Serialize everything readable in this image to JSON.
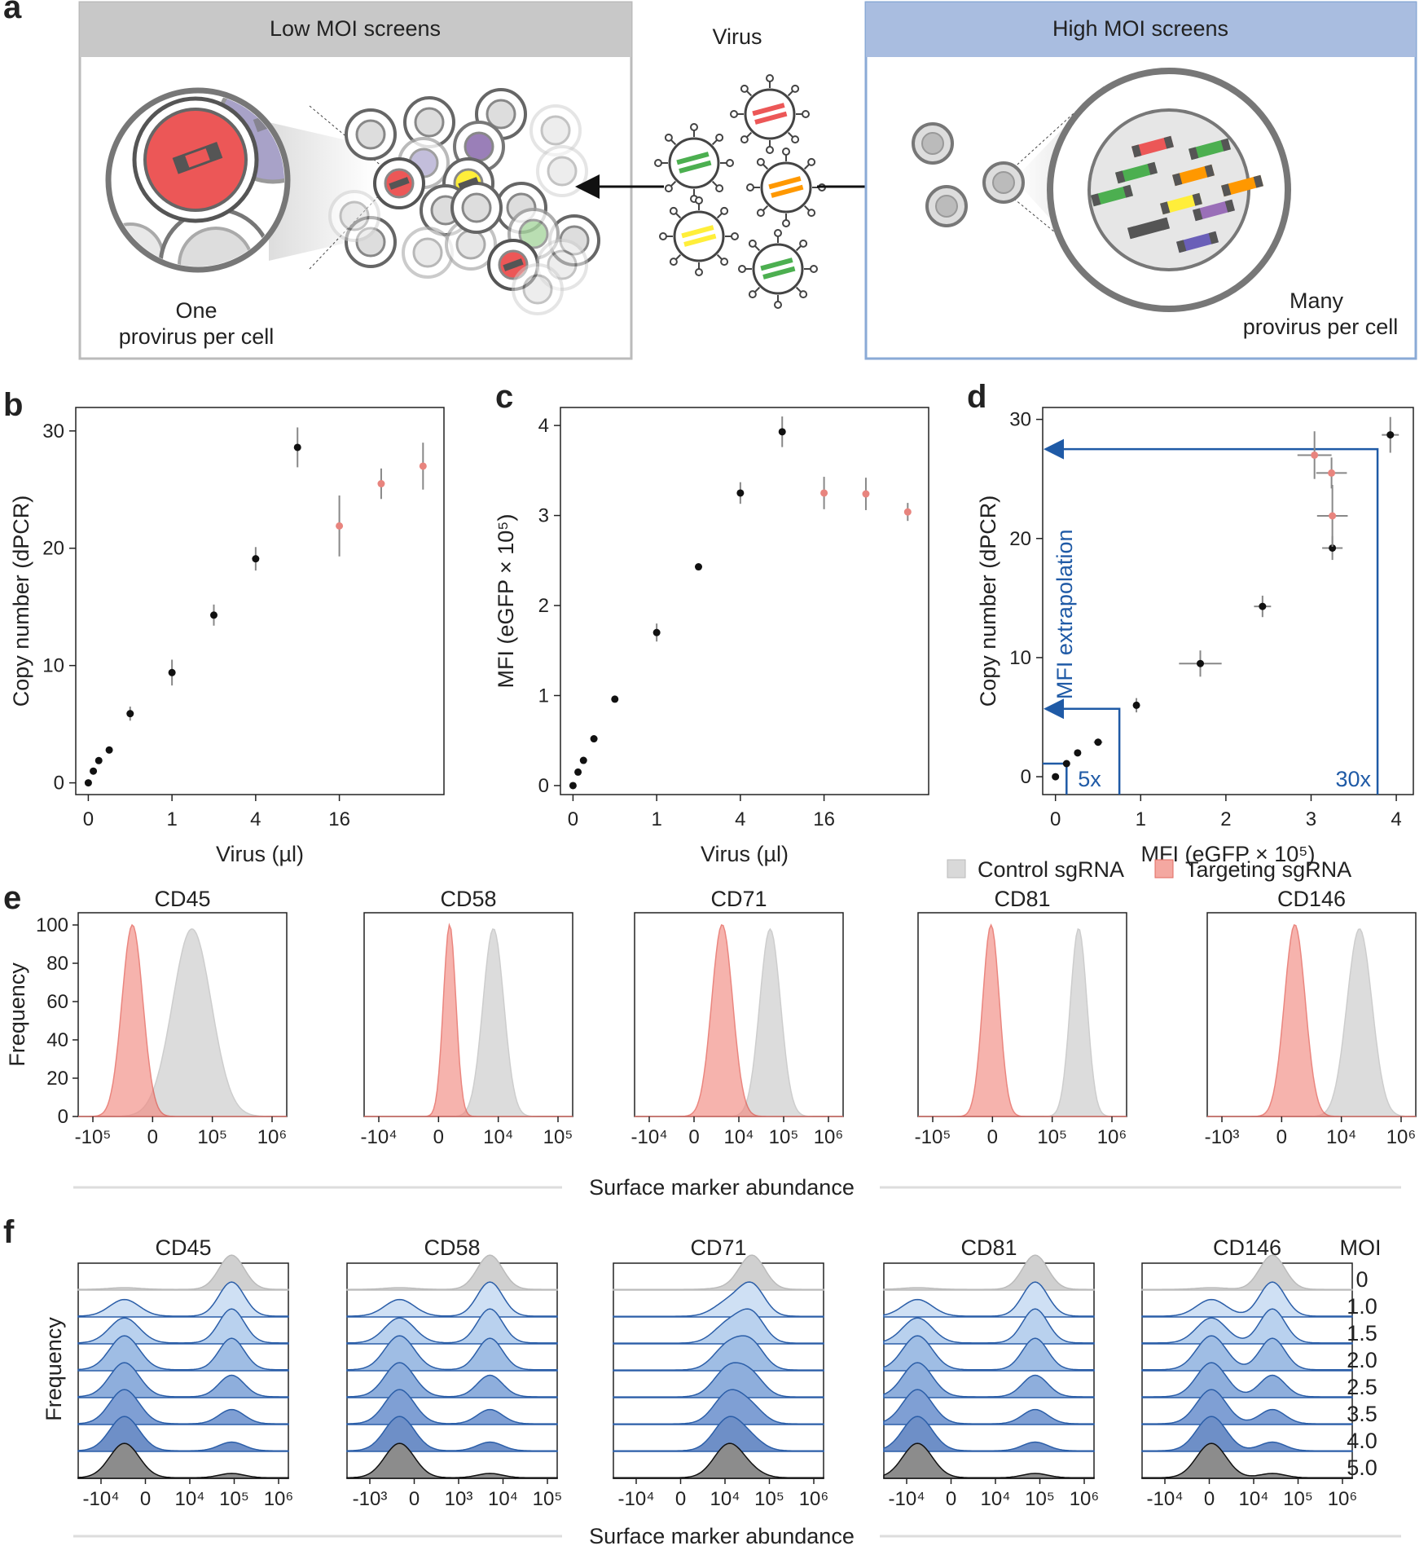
{
  "figure": {
    "panel_labels": [
      "a",
      "b",
      "c",
      "d",
      "e",
      "f"
    ],
    "colors": {
      "low_header": "#c8c8c8",
      "high_header": "#a9bde0",
      "high_border": "#8aaad6",
      "black_point": "#111111",
      "pink_point": "#e8847e",
      "extrapolation": "#1f5aa6",
      "control_fill": "#d9d9d9",
      "targeting_fill": "#f28b82",
      "moi_palette": [
        "#d0d0d0",
        "#cfe0f4",
        "#b9d1ee",
        "#9fbde4",
        "#8eaedc",
        "#7f9fd4",
        "#6e8fc7",
        "#8c8c8c"
      ]
    }
  },
  "panel_a": {
    "low_title": "Low MOI screens",
    "high_title": "High MOI screens",
    "virus_label": "Virus",
    "low_caption_line1": "One",
    "low_caption_line2": "provirus per cell",
    "high_caption_line1": "Many",
    "high_caption_line2": "provirus per cell",
    "icons": [
      "cell-icon",
      "virus-icon",
      "provirus-icon",
      "arrow-icon"
    ]
  },
  "chart_data": [
    {
      "id": "b",
      "type": "scatter",
      "xlabel": "Virus (µl)",
      "ylabel": "Copy number (dPCR)",
      "x_tick_labels": [
        "0",
        "1",
        "4",
        "16"
      ],
      "y_ticks": [
        0,
        10,
        20,
        30
      ],
      "ylim": [
        -1,
        32
      ],
      "series": [
        {
          "color": "black",
          "points": [
            {
              "x": 0,
              "y": 0,
              "err": 0.2
            },
            {
              "x": 0.12,
              "y": 1.0,
              "err": 0.2
            },
            {
              "x": 0.25,
              "y": 1.9,
              "err": 0.2
            },
            {
              "x": 0.5,
              "y": 2.8,
              "err": 0.3
            },
            {
              "x": 1,
              "y": 5.9,
              "err": 0.6
            },
            {
              "x": 2,
              "y": 9.4,
              "err": 1.1
            },
            {
              "x": 3,
              "y": 14.3,
              "err": 0.9
            },
            {
              "x": 4,
              "y": 19.1,
              "err": 1.0
            },
            {
              "x": 5,
              "y": 28.6,
              "err": 1.7
            }
          ]
        },
        {
          "color": "pink",
          "points": [
            {
              "x": 6,
              "y": 21.9,
              "err": 2.6
            },
            {
              "x": 7,
              "y": 25.5,
              "err": 1.3
            },
            {
              "x": 8,
              "y": 27.0,
              "err": 2.0
            }
          ]
        }
      ]
    },
    {
      "id": "c",
      "type": "scatter",
      "xlabel": "Virus (µl)",
      "ylabel": "MFI (eGFP × 10⁵)",
      "x_tick_labels": [
        "0",
        "1",
        "4",
        "16"
      ],
      "y_ticks": [
        0,
        1,
        2,
        3,
        4
      ],
      "ylim": [
        -0.1,
        4.2
      ],
      "series": [
        {
          "color": "black",
          "points": [
            {
              "x": 0,
              "y": 0.0,
              "err": 0.02
            },
            {
              "x": 0.12,
              "y": 0.15,
              "err": 0.02
            },
            {
              "x": 0.25,
              "y": 0.28,
              "err": 0.02
            },
            {
              "x": 0.5,
              "y": 0.52,
              "err": 0.03
            },
            {
              "x": 1,
              "y": 0.96,
              "err": 0.03
            },
            {
              "x": 2,
              "y": 1.7,
              "err": 0.1
            },
            {
              "x": 3,
              "y": 2.43,
              "err": 0.03
            },
            {
              "x": 4,
              "y": 3.25,
              "err": 0.12
            },
            {
              "x": 5,
              "y": 3.93,
              "err": 0.17
            }
          ]
        },
        {
          "color": "pink",
          "points": [
            {
              "x": 6,
              "y": 3.25,
              "err": 0.18
            },
            {
              "x": 7,
              "y": 3.24,
              "err": 0.18
            },
            {
              "x": 8,
              "y": 3.04,
              "err": 0.1
            }
          ]
        }
      ]
    },
    {
      "id": "d",
      "type": "scatter",
      "xlabel": "MFI (eGFP × 10⁵)",
      "ylabel": "Copy number (dPCR)",
      "x_ticks": [
        0,
        1,
        2,
        3,
        4
      ],
      "y_ticks": [
        0,
        10,
        20,
        30
      ],
      "xlim": [
        -0.15,
        4.2
      ],
      "ylim": [
        -1.5,
        31
      ],
      "annotation": "MFI extrapolation",
      "marker_5x": "5x",
      "marker_30x": "30x",
      "series": [
        {
          "color": "black",
          "points": [
            {
              "x": 0,
              "y": 0,
              "xerr": 0.02,
              "yerr": 0.2
            },
            {
              "x": 0.13,
              "y": 1.1,
              "xerr": 0.03,
              "yerr": 0.2
            },
            {
              "x": 0.26,
              "y": 2.0,
              "xerr": 0.03,
              "yerr": 0.2
            },
            {
              "x": 0.5,
              "y": 2.9,
              "xerr": 0.05,
              "yerr": 0.3
            },
            {
              "x": 0.95,
              "y": 6.0,
              "xerr": 0.03,
              "yerr": 0.6
            },
            {
              "x": 1.7,
              "y": 9.5,
              "xerr": 0.25,
              "yerr": 1.1
            },
            {
              "x": 2.43,
              "y": 14.3,
              "xerr": 0.1,
              "yerr": 0.9
            },
            {
              "x": 3.25,
              "y": 19.2,
              "xerr": 0.12,
              "yerr": 1.0
            },
            {
              "x": 3.93,
              "y": 28.7,
              "xerr": 0.1,
              "yerr": 1.5
            }
          ]
        },
        {
          "color": "pink",
          "points": [
            {
              "x": 3.25,
              "y": 21.9,
              "xerr": 0.18,
              "yerr": 2.6
            },
            {
              "x": 3.24,
              "y": 25.5,
              "xerr": 0.18,
              "yerr": 1.3
            },
            {
              "x": 3.04,
              "y": 27.0,
              "xerr": 0.2,
              "yerr": 2.0
            }
          ]
        }
      ]
    },
    {
      "id": "e",
      "type": "area",
      "legend": {
        "control": "Control sgRNA",
        "targeting": "Targeting sgRNA"
      },
      "ylabel": "Frequency",
      "y_ticks": [
        0,
        20,
        40,
        60,
        80,
        100
      ],
      "xlabel": "Surface marker abundance",
      "markers": [
        {
          "name": "CD45",
          "x_ticks": [
            "-10⁵",
            "0",
            "10⁵",
            "10⁶"
          ],
          "control": {
            "mu": 0.58,
            "sigma": 0.1,
            "skew": -0.4
          },
          "targeting": {
            "mu": 0.26,
            "sigma": 0.05
          }
        },
        {
          "name": "CD58",
          "x_ticks": [
            "-10⁴",
            "0",
            "10⁴",
            "10⁵"
          ],
          "control": {
            "mu": 0.62,
            "sigma": 0.05,
            "skew": 0
          },
          "targeting": {
            "mu": 0.41,
            "sigma": 0.03
          }
        },
        {
          "name": "CD71",
          "x_ticks": [
            "-10⁴",
            "0",
            "10⁴",
            "10⁵",
            "10⁶"
          ],
          "control": {
            "mu": 0.65,
            "sigma": 0.05,
            "skew": 0
          },
          "targeting": {
            "mu": 0.42,
            "sigma": 0.05
          }
        },
        {
          "name": "CD81",
          "x_ticks": [
            "-10⁵",
            "0",
            "10⁵",
            "10⁶"
          ],
          "control": {
            "mu": 0.77,
            "sigma": 0.04,
            "skew": 0
          },
          "targeting": {
            "mu": 0.35,
            "sigma": 0.04
          }
        },
        {
          "name": "CD146",
          "x_ticks": [
            "-10³",
            "0",
            "10⁴",
            "10⁶"
          ],
          "control": {
            "mu": 0.73,
            "sigma": 0.06,
            "skew": 0
          },
          "targeting": {
            "mu": 0.42,
            "sigma": 0.05
          }
        }
      ]
    },
    {
      "id": "f",
      "type": "area",
      "ylabel": "Frequency",
      "xlabel": "Surface marker abundance",
      "moi_title": "MOI",
      "moi_values": [
        "0",
        "1.0",
        "1.5",
        "2.0",
        "2.5",
        "3.5",
        "4.0",
        "5.0"
      ],
      "markers": [
        {
          "name": "CD45",
          "x_ticks": [
            "-10⁴",
            "0",
            "10⁴",
            "10⁵",
            "10⁶"
          ],
          "low_mu": 0.22,
          "high_mu": 0.73
        },
        {
          "name": "CD58",
          "x_ticks": [
            "-10³",
            "0",
            "10³",
            "10⁴",
            "10⁵"
          ],
          "low_mu": 0.25,
          "high_mu": 0.68
        },
        {
          "name": "CD71",
          "x_ticks": [
            "-10⁴",
            "0",
            "10⁴",
            "10⁵",
            "10⁶"
          ],
          "low_mu": 0.55,
          "high_mu": 0.66
        },
        {
          "name": "CD81",
          "x_ticks": [
            "-10⁴",
            "0",
            "10⁴",
            "10⁵",
            "10⁶"
          ],
          "low_mu": 0.16,
          "high_mu": 0.72
        },
        {
          "name": "CD146",
          "x_ticks": [
            "-10⁴",
            "0",
            "10⁴",
            "10⁵",
            "10⁶"
          ],
          "low_mu": 0.33,
          "high_mu": 0.62
        }
      ]
    }
  ]
}
